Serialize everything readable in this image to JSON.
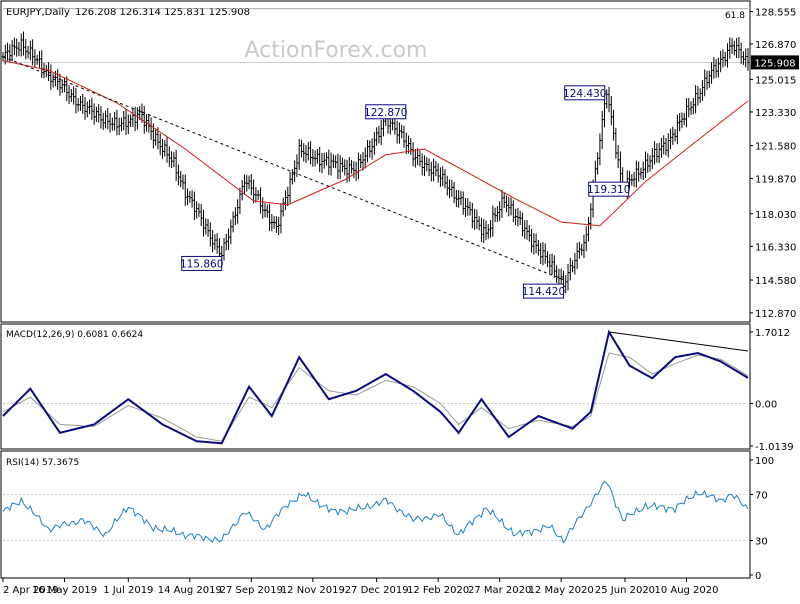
{
  "header": {
    "symbol": "EURJPY,Daily",
    "ohlc": "126.208 126.314 125.831 125.908"
  },
  "watermark": "ActionForex.com",
  "colors": {
    "price_line": "#000000",
    "ma": "#d81c1c",
    "macd": "#0a0a80",
    "signal": "#9a9a9a",
    "rsi": "#1e7fc2",
    "frame": "#000000",
    "label_border": "#0a0a80",
    "label_text": "#0a0a80",
    "current_price_bg": "#000000",
    "current_price_text": "#ffffff"
  },
  "chart_data": [
    {
      "type": "line",
      "panel": "price",
      "symbol": "EURJPY",
      "timeframe": "Daily",
      "ylim": [
        112.5,
        129.0
      ],
      "y_ticks": [
        "128.555",
        "126.870",
        "125.015",
        "123.330",
        "121.580",
        "119.870",
        "118.030",
        "116.330",
        "114.580",
        "112.870"
      ],
      "x_tick_labels": [
        "2 Apr 2019",
        "16 May 2019",
        "1 Jul 2019",
        "14 Aug 2019",
        "27 Sep 2019",
        "12 Nov 2019",
        "27 Dec 2019",
        "12 Feb 2020",
        "27 Mar 2020",
        "12 May 2020",
        "25 Jun 2020",
        "10 Aug 2020"
      ],
      "current_price": "125.908",
      "fib_label": "61.8",
      "fib_level": 128.7,
      "annotations": [
        {
          "text": "115.860",
          "value": 115.86,
          "date_index": 96
        },
        {
          "text": "122.870",
          "value": 122.87,
          "date_index": 168
        },
        {
          "text": "114.420",
          "value": 114.42,
          "date_index": 246
        },
        {
          "text": "124.430",
          "value": 124.43,
          "date_index": 265
        },
        {
          "text": "119.310",
          "value": 119.31,
          "date_index": 272
        }
      ],
      "series": [
        {
          "type": "line",
          "role": "close",
          "anchors": [
            [
              0,
              126.2
            ],
            [
              8,
              126.9
            ],
            [
              20,
              125.3
            ],
            [
              35,
              123.6
            ],
            [
              50,
              122.6
            ],
            [
              60,
              123.2
            ],
            [
              75,
              120.6
            ],
            [
              80,
              119.2
            ],
            [
              96,
              115.86
            ],
            [
              100,
              117.3
            ],
            [
              106,
              119.8
            ],
            [
              112,
              118.8
            ],
            [
              120,
              117.2
            ],
            [
              126,
              119.7
            ],
            [
              130,
              121.3
            ],
            [
              145,
              120.6
            ],
            [
              155,
              120.3
            ],
            [
              168,
              122.87
            ],
            [
              175,
              122.2
            ],
            [
              180,
              121.0
            ],
            [
              190,
              120.2
            ],
            [
              200,
              118.8
            ],
            [
              212,
              117.0
            ],
            [
              220,
              118.8
            ],
            [
              230,
              117.0
            ],
            [
              246,
              114.42
            ],
            [
              256,
              116.8
            ],
            [
              265,
              124.43
            ],
            [
              272,
              119.31
            ],
            [
              282,
              120.6
            ],
            [
              292,
              121.8
            ],
            [
              300,
              123.3
            ],
            [
              310,
              125.2
            ],
            [
              320,
              126.8
            ],
            [
              327,
              125.908
            ]
          ]
        },
        {
          "type": "line",
          "role": "moving-average",
          "anchors": [
            [
              0,
              126.0
            ],
            [
              20,
              125.5
            ],
            [
              50,
              123.8
            ],
            [
              80,
              121.4
            ],
            [
              110,
              118.7
            ],
            [
              125,
              118.5
            ],
            [
              150,
              119.8
            ],
            [
              168,
              121.1
            ],
            [
              185,
              121.4
            ],
            [
              205,
              120.1
            ],
            [
              225,
              118.8
            ],
            [
              245,
              117.6
            ],
            [
              262,
              117.4
            ],
            [
              282,
              119.7
            ],
            [
              300,
              121.4
            ],
            [
              327,
              123.9
            ]
          ]
        }
      ],
      "trendline": {
        "from": [
          0,
          126.2
        ],
        "to": [
          246,
          114.6
        ]
      }
    },
    {
      "type": "line",
      "panel": "macd",
      "label": "MACD(12,26,9) 0.6081 0.6624",
      "ylim": [
        -1.0139,
        1.7012
      ],
      "y_ticks": [
        "1.7012",
        "0.00",
        "-1.0139"
      ],
      "series": [
        {
          "role": "macd",
          "anchors": [
            [
              0,
              -0.3
            ],
            [
              12,
              0.35
            ],
            [
              25,
              -0.7
            ],
            [
              40,
              -0.5
            ],
            [
              55,
              0.1
            ],
            [
              70,
              -0.5
            ],
            [
              85,
              -0.9
            ],
            [
              96,
              -0.95
            ],
            [
              108,
              0.4
            ],
            [
              118,
              -0.3
            ],
            [
              130,
              1.1
            ],
            [
              143,
              0.1
            ],
            [
              155,
              0.3
            ],
            [
              168,
              0.7
            ],
            [
              180,
              0.3
            ],
            [
              192,
              -0.2
            ],
            [
              200,
              -0.7
            ],
            [
              210,
              0.1
            ],
            [
              222,
              -0.8
            ],
            [
              235,
              -0.3
            ],
            [
              250,
              -0.6
            ],
            [
              258,
              -0.2
            ],
            [
              266,
              1.7012
            ],
            [
              275,
              0.9
            ],
            [
              285,
              0.6
            ],
            [
              295,
              1.1
            ],
            [
              305,
              1.2
            ],
            [
              315,
              1.0
            ],
            [
              327,
              0.6081
            ]
          ]
        },
        {
          "role": "signal",
          "anchors": [
            [
              0,
              -0.2
            ],
            [
              12,
              0.15
            ],
            [
              25,
              -0.5
            ],
            [
              40,
              -0.55
            ],
            [
              55,
              -0.05
            ],
            [
              70,
              -0.35
            ],
            [
              85,
              -0.8
            ],
            [
              96,
              -0.9
            ],
            [
              108,
              0.15
            ],
            [
              118,
              -0.1
            ],
            [
              130,
              0.85
            ],
            [
              143,
              0.3
            ],
            [
              155,
              0.2
            ],
            [
              168,
              0.55
            ],
            [
              180,
              0.4
            ],
            [
              192,
              0.0
            ],
            [
              200,
              -0.5
            ],
            [
              210,
              -0.1
            ],
            [
              222,
              -0.6
            ],
            [
              235,
              -0.4
            ],
            [
              250,
              -0.55
            ],
            [
              258,
              -0.3
            ],
            [
              266,
              1.2
            ],
            [
              275,
              1.1
            ],
            [
              285,
              0.7
            ],
            [
              295,
              0.95
            ],
            [
              305,
              1.15
            ],
            [
              315,
              1.05
            ],
            [
              327,
              0.6624
            ]
          ]
        }
      ],
      "trendline": {
        "from": [
          266,
          1.7012
        ],
        "to": [
          327,
          1.25
        ]
      }
    },
    {
      "type": "line",
      "panel": "rsi",
      "label": "RSI(14) 57.3675",
      "ylim": [
        0,
        100
      ],
      "y_ticks": [
        "100",
        "70",
        "30",
        "0"
      ],
      "levels": [
        70,
        30
      ],
      "series": [
        {
          "role": "rsi",
          "anchors": [
            [
              0,
              55
            ],
            [
              8,
              65
            ],
            [
              20,
              40
            ],
            [
              35,
              48
            ],
            [
              45,
              35
            ],
            [
              55,
              60
            ],
            [
              65,
              42
            ],
            [
              80,
              35
            ],
            [
              96,
              30
            ],
            [
              106,
              55
            ],
            [
              115,
              40
            ],
            [
              125,
              62
            ],
            [
              132,
              70
            ],
            [
              145,
              55
            ],
            [
              158,
              58
            ],
            [
              168,
              65
            ],
            [
              180,
              48
            ],
            [
              192,
              52
            ],
            [
              200,
              35
            ],
            [
              212,
              58
            ],
            [
              225,
              35
            ],
            [
              240,
              42
            ],
            [
              246,
              30
            ],
            [
              255,
              55
            ],
            [
              265,
              82
            ],
            [
              272,
              48
            ],
            [
              282,
              60
            ],
            [
              295,
              58
            ],
            [
              305,
              72
            ],
            [
              315,
              65
            ],
            [
              320,
              70
            ],
            [
              327,
              57.3675
            ]
          ]
        }
      ]
    }
  ]
}
